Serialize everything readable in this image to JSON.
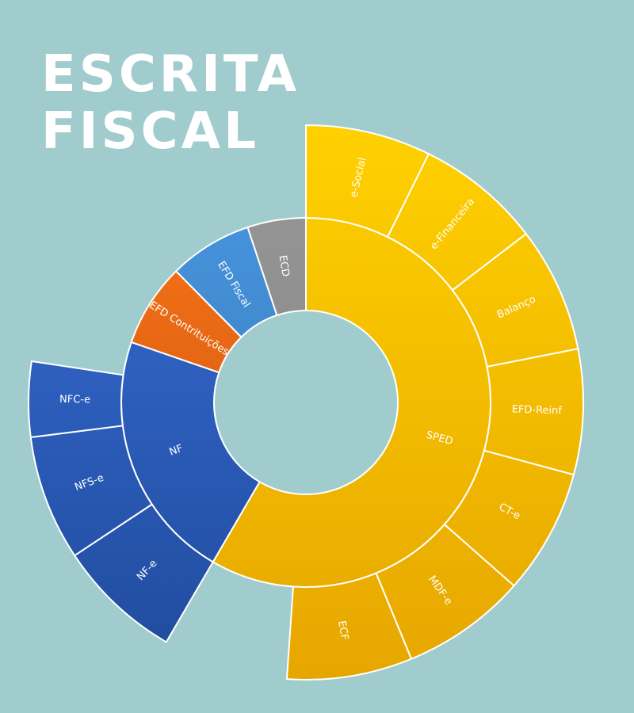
{
  "title": {
    "line1": "ESCRITA",
    "line2": "FISCAL"
  },
  "chart_data": {
    "type": "sunburst",
    "title": "ESCRITA FISCAL",
    "colors": {
      "SPED": [
        "#ffd100",
        "#e6a600"
      ],
      "NF": [
        "#3a6fda",
        "#1f4b9c"
      ],
      "EFD Contrituições": [
        "#ff7a1a",
        "#c44d0c"
      ],
      "EFD Fiscal": [
        "#4c9be6",
        "#2e6fac"
      ],
      "ECD": [
        "#9a9a9a",
        "#7b7b7b"
      ]
    },
    "inner": [
      {
        "name": "SPED",
        "value": 8,
        "children": [
          "e-Social",
          "e-Financeira",
          "Balanço",
          "EFD-Reinf",
          "CT-e",
          "MDF-e",
          "ECF"
        ]
      },
      {
        "name": "NF",
        "value": 3,
        "children": [
          "NF-e",
          "NFS-e",
          "NFC-e"
        ]
      },
      {
        "name": "EFD Contrituições",
        "value": 1,
        "children": []
      },
      {
        "name": "EFD Fiscal",
        "value": 1,
        "children": []
      },
      {
        "name": "ECD",
        "value": 0.7,
        "children": []
      }
    ],
    "outer": [
      {
        "name": "e-Social",
        "parent": "SPED",
        "value": 1
      },
      {
        "name": "e-Financeira",
        "parent": "SPED",
        "value": 1
      },
      {
        "name": "Balanço",
        "parent": "SPED",
        "value": 1
      },
      {
        "name": "EFD-Reinf",
        "parent": "SPED",
        "value": 1
      },
      {
        "name": "CT-e",
        "parent": "SPED",
        "value": 1
      },
      {
        "name": "MDF-e",
        "parent": "SPED",
        "value": 1
      },
      {
        "name": "ECF",
        "parent": "SPED",
        "value": 1
      },
      {
        "name": "NF-e",
        "parent": "NF",
        "value": 1
      },
      {
        "name": "NFS-e",
        "parent": "NF",
        "value": 1
      },
      {
        "name": "NFC-e",
        "parent": "NF",
        "value": 0.6
      }
    ]
  }
}
